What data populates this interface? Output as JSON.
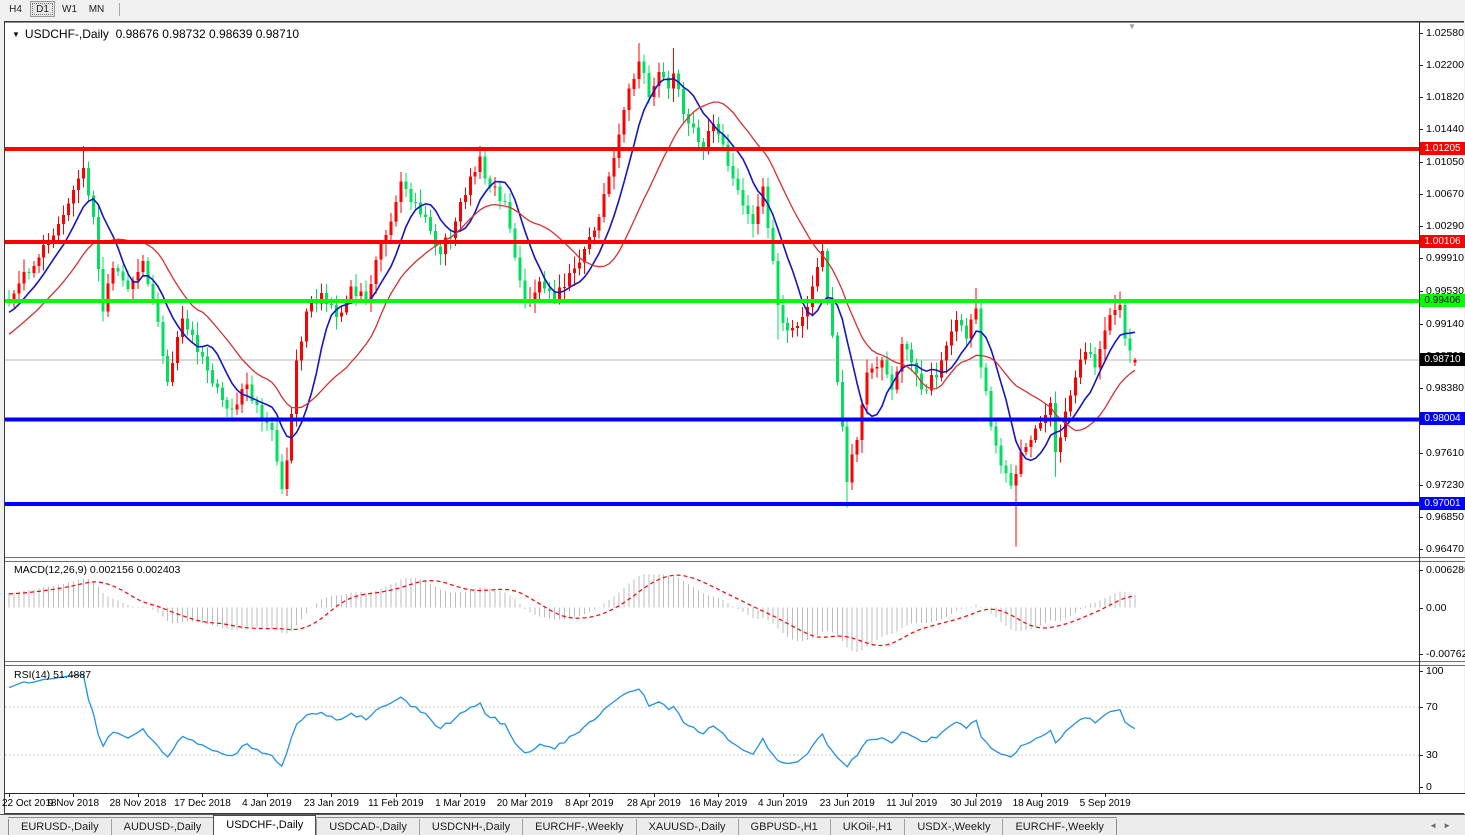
{
  "toolbar": {
    "timeframes": [
      {
        "label": "H4",
        "active": false
      },
      {
        "label": "D1",
        "active": true
      },
      {
        "label": "W1",
        "active": false
      },
      {
        "label": "MN",
        "active": false
      }
    ]
  },
  "chart": {
    "title": "USDCHF-,Daily",
    "quote": "0.98676 0.98732 0.98639 0.98710",
    "dropdown_arrow": "▼",
    "shift_marker": "▼",
    "macd_label": "MACD(12,26,9) 0.002156 0.002403",
    "rsi_label": "RSI(14) 51.4887",
    "y_ticks": [
      "1.02580",
      "1.02200",
      "1.01820",
      "1.01440",
      "1.01050",
      "1.00670",
      "1.00290",
      "0.99910",
      "0.99530",
      "0.99140",
      "0.98760",
      "0.98380",
      "0.97610",
      "0.97230",
      "0.96850",
      "0.96470"
    ],
    "macd_ticks": [
      "0.006286",
      "0.00",
      "-0.00762"
    ],
    "rsi_ticks": [
      "100",
      "70",
      "30",
      "0"
    ],
    "rsi_guide_levels": [
      70,
      30
    ],
    "x_ticks": [
      "22 Oct 2018",
      "9 Nov 2018",
      "28 Nov 2018",
      "17 Dec 2018",
      "4 Jan 2019",
      "23 Jan 2019",
      "11 Feb 2019",
      "1 Mar 2019",
      "20 Mar 2019",
      "8 Apr 2019",
      "28 Apr 2019",
      "16 May 2019",
      "4 Jun 2019",
      "23 Jun 2019",
      "11 Jul 2019",
      "30 Jul 2019",
      "18 Aug 2019",
      "5 Sep 2019"
    ],
    "levels": [
      {
        "label": "1.01205",
        "price": 1.01205,
        "color": "#ff0000",
        "text": "#ffffff"
      },
      {
        "label": "1.00106",
        "price": 1.00106,
        "color": "#ff0000",
        "text": "#ffffff"
      },
      {
        "label": "0.99406",
        "price": 0.99406,
        "color": "#00ff00",
        "text": "#000000"
      },
      {
        "label": "0.98004",
        "price": 0.98004,
        "color": "#0000ff",
        "text": "#ffffff"
      },
      {
        "label": "0.97001",
        "price": 0.97001,
        "color": "#0000ff",
        "text": "#ffffff"
      }
    ],
    "current_price": {
      "label": "0.98710",
      "price": 0.9871,
      "badge_bg": "#000000",
      "badge_text": "#ffffff",
      "line_color": "#b4b4b4"
    }
  },
  "chart_data": {
    "type": "candlestick+macd+rsi",
    "symbol": "USDCHF",
    "timeframe": "Daily",
    "price_range": {
      "top": 1.0258,
      "bottom": 0.9647
    },
    "ohlc_last": {
      "open": 0.98676,
      "high": 0.98732,
      "low": 0.98639,
      "close": 0.9871
    },
    "bar_count": 228,
    "warmup": {
      "bars": 30,
      "start": 0.982
    },
    "jitter": 0.0008,
    "price_anchors": [
      [
        0,
        0.994
      ],
      [
        3,
        0.9975
      ],
      [
        6,
        0.9992
      ],
      [
        9,
        1.0018
      ],
      [
        12,
        1.0056
      ],
      [
        15,
        1.0098
      ],
      [
        17,
        1.004
      ],
      [
        19,
        0.9928
      ],
      [
        21,
        0.998
      ],
      [
        24,
        0.9955
      ],
      [
        27,
        0.9988
      ],
      [
        29,
        0.9942
      ],
      [
        32,
        0.9845
      ],
      [
        35,
        0.992
      ],
      [
        38,
        0.988
      ],
      [
        42,
        0.9838
      ],
      [
        45,
        0.9812
      ],
      [
        48,
        0.9842
      ],
      [
        51,
        0.98
      ],
      [
        53,
        0.9788
      ],
      [
        55,
        0.9718
      ],
      [
        56,
        0.9752
      ],
      [
        58,
        0.987
      ],
      [
        60,
        0.9928
      ],
      [
        63,
        0.995
      ],
      [
        66,
        0.9922
      ],
      [
        69,
        0.9958
      ],
      [
        72,
        0.994
      ],
      [
        75,
        1.0008
      ],
      [
        78,
        1.0058
      ],
      [
        79,
        1.0082
      ],
      [
        81,
        1.0058
      ],
      [
        84,
        1.004
      ],
      [
        87,
        0.9996
      ],
      [
        90,
        1.0035
      ],
      [
        93,
        1.0088
      ],
      [
        95,
        1.0112
      ],
      [
        97,
        1.0075
      ],
      [
        100,
        1.0058
      ],
      [
        102,
        0.9992
      ],
      [
        104,
        0.994
      ],
      [
        107,
        0.9964
      ],
      [
        110,
        0.9942
      ],
      [
        113,
        0.9974
      ],
      [
        116,
        1.0002
      ],
      [
        119,
        1.004
      ],
      [
        121,
        1.0088
      ],
      [
        123,
        1.0138
      ],
      [
        125,
        1.0192
      ],
      [
        127,
        1.0224
      ],
      [
        129,
        1.0182
      ],
      [
        131,
        1.0212
      ],
      [
        133,
        1.0192
      ],
      [
        134,
        1.021
      ],
      [
        136,
        1.0162
      ],
      [
        138,
        1.0146
      ],
      [
        140,
        1.0122
      ],
      [
        142,
        1.015
      ],
      [
        144,
        1.0126
      ],
      [
        147,
        1.0072
      ],
      [
        150,
        1.0032
      ],
      [
        152,
        1.0076
      ],
      [
        155,
        0.9936
      ],
      [
        157,
        0.9906
      ],
      [
        160,
        0.9922
      ],
      [
        162,
        0.9958
      ],
      [
        164,
        1.0
      ],
      [
        166,
        0.99
      ],
      [
        168,
        0.9792
      ],
      [
        169,
        0.9726
      ],
      [
        171,
        0.9776
      ],
      [
        173,
        0.9856
      ],
      [
        176,
        0.987
      ],
      [
        178,
        0.9836
      ],
      [
        180,
        0.989
      ],
      [
        182,
        0.9868
      ],
      [
        184,
        0.9836
      ],
      [
        187,
        0.985
      ],
      [
        189,
        0.9888
      ],
      [
        191,
        0.9918
      ],
      [
        193,
        0.9896
      ],
      [
        195,
        0.9932
      ],
      [
        196,
        0.9862
      ],
      [
        198,
        0.9792
      ],
      [
        200,
        0.9746
      ],
      [
        202,
        0.9722
      ],
      [
        203,
        0.9736
      ],
      [
        204,
        0.9762
      ],
      [
        206,
        0.9776
      ],
      [
        208,
        0.9796
      ],
      [
        210,
        0.982
      ],
      [
        211,
        0.9762
      ],
      [
        213,
        0.981
      ],
      [
        215,
        0.985
      ],
      [
        217,
        0.988
      ],
      [
        219,
        0.9862
      ],
      [
        221,
        0.9906
      ],
      [
        223,
        0.993
      ],
      [
        224,
        0.9936
      ],
      [
        225,
        0.9896
      ],
      [
        226,
        0.9882
      ],
      [
        227,
        0.9871
      ]
    ],
    "overrides": {
      "15": {
        "h": 1.0124
      },
      "55": {
        "l": 0.9712
      },
      "95": {
        "h": 1.0124
      },
      "127": {
        "h": 1.0246
      },
      "134": {
        "h": 1.024
      },
      "155": {
        "l": 0.9895
      },
      "164": {
        "h": 1.001
      },
      "169": {
        "l": 0.9696
      },
      "195": {
        "h": 0.9956
      },
      "203": {
        "l": 0.965
      },
      "211": {
        "l": 0.9732
      },
      "223": {
        "h": 0.9948
      },
      "224": {
        "h": 0.9952
      },
      "227": {
        "o": 0.98676,
        "h": 0.98732,
        "l": 0.98639,
        "c": 0.9871
      }
    },
    "ma_fast_period": 8,
    "ma_slow_period": 20,
    "macd": {
      "fast": 12,
      "slow": 26,
      "signal": 9,
      "last_main": 0.002156,
      "last_signal": 0.002403,
      "axis_max": 0.006286,
      "axis_min": -0.00762
    },
    "rsi": {
      "period": 14,
      "last": 51.4887,
      "upper_level": 70,
      "lower_level": 30
    },
    "colors": {
      "up_candle": "#ff0000",
      "down_candle": "#00e05c",
      "ma_fast": "#1414c8",
      "ma_slow": "#d83030",
      "macd_histogram": "#bdbdbd",
      "macd_signal": "#ff0000",
      "rsi_line": "#2090f0",
      "rsi_guides": "#c8c8c8"
    }
  },
  "tabs": {
    "items": [
      {
        "label": "EURUSD-,Daily",
        "active": false
      },
      {
        "label": "AUDUSD-,Daily",
        "active": false
      },
      {
        "label": "USDCHF-,Daily",
        "active": true
      },
      {
        "label": "USDCAD-,Daily",
        "active": false
      },
      {
        "label": "USDCNH-,Daily",
        "active": false
      },
      {
        "label": "EURCHF-,Weekly",
        "active": false
      },
      {
        "label": "XAUUSD-,Daily",
        "active": false
      },
      {
        "label": "GBPUSD-,H1",
        "active": false
      },
      {
        "label": "UKOil-,H1",
        "active": false
      },
      {
        "label": "USDX-,Weekly",
        "active": false
      },
      {
        "label": "EURCHF-,Weekly",
        "active": false
      }
    ],
    "scroll_left": "◄",
    "scroll_right": "►"
  }
}
